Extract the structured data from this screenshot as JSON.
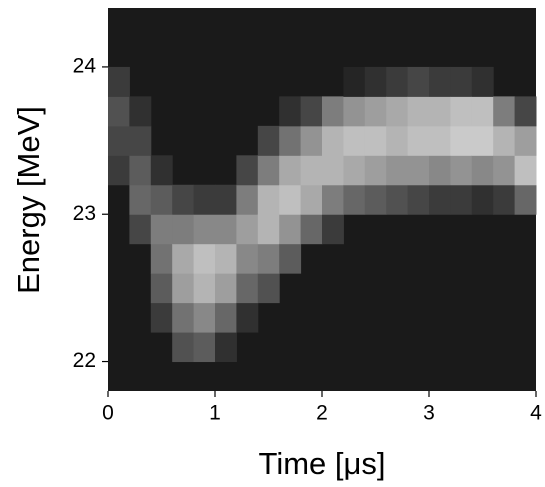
{
  "chart_data": {
    "type": "heatmap",
    "xlabel": "Time [μs]",
    "ylabel": "Energy [MeV]",
    "xlim": [
      0,
      4
    ],
    "ylim": [
      21.8,
      24.4
    ],
    "xticks": [
      0,
      1,
      2,
      3,
      4
    ],
    "yticks": [
      22,
      23,
      24
    ],
    "background": "#1a1a1a",
    "x_edges": [
      0,
      0.2,
      0.4,
      0.6,
      0.8,
      1,
      1.2,
      1.4,
      1.6,
      1.8,
      2,
      2.2,
      2.4,
      2.6,
      2.8,
      3,
      3.2,
      3.4,
      3.6,
      3.8,
      4
    ],
    "y_edges": [
      21.8,
      22,
      22.2,
      22.4,
      22.6,
      22.8,
      23,
      23.2,
      23.4,
      23.6,
      23.8,
      24,
      24.2,
      24.4
    ],
    "z": [
      [
        0,
        0,
        0,
        0,
        0,
        0,
        0,
        0.15,
        0.2,
        0.25,
        0.15,
        0,
        0
      ],
      [
        0,
        0,
        0,
        0,
        0,
        0.2,
        0.35,
        0.3,
        0.2,
        0.1,
        0,
        0,
        0
      ],
      [
        0,
        0,
        0.15,
        0.3,
        0.4,
        0.45,
        0.3,
        0.1,
        0,
        0,
        0,
        0,
        0
      ],
      [
        0,
        0.25,
        0.4,
        0.6,
        0.65,
        0.45,
        0.2,
        0,
        0,
        0,
        0,
        0,
        0
      ],
      [
        0,
        0.3,
        0.5,
        0.7,
        0.75,
        0.5,
        0.15,
        0,
        0,
        0,
        0,
        0,
        0
      ],
      [
        0,
        0.1,
        0.35,
        0.6,
        0.7,
        0.5,
        0.15,
        0,
        0,
        0,
        0,
        0,
        0
      ],
      [
        0,
        0,
        0.1,
        0.35,
        0.5,
        0.6,
        0.45,
        0.2,
        0,
        0,
        0,
        0,
        0
      ],
      [
        0,
        0,
        0,
        0.25,
        0.45,
        0.7,
        0.7,
        0.45,
        0.2,
        0,
        0,
        0,
        0
      ],
      [
        0,
        0,
        0,
        0,
        0.3,
        0.55,
        0.75,
        0.65,
        0.4,
        0.1,
        0,
        0,
        0
      ],
      [
        0,
        0,
        0,
        0,
        0,
        0.35,
        0.65,
        0.7,
        0.55,
        0.2,
        0,
        0,
        0
      ],
      [
        0,
        0,
        0,
        0,
        0,
        0.15,
        0.45,
        0.7,
        0.7,
        0.45,
        0,
        0,
        0
      ],
      [
        0,
        0,
        0,
        0,
        0,
        0,
        0.35,
        0.65,
        0.75,
        0.55,
        0.05,
        0,
        0
      ],
      [
        0,
        0,
        0,
        0,
        0,
        0,
        0.3,
        0.6,
        0.75,
        0.6,
        0.1,
        0,
        0
      ],
      [
        0,
        0,
        0,
        0,
        0,
        0,
        0.25,
        0.55,
        0.7,
        0.65,
        0.15,
        0,
        0
      ],
      [
        0,
        0,
        0,
        0,
        0,
        0,
        0.2,
        0.55,
        0.75,
        0.7,
        0.2,
        0,
        0
      ],
      [
        0,
        0,
        0,
        0,
        0,
        0,
        0.15,
        0.5,
        0.75,
        0.7,
        0.15,
        0,
        0
      ],
      [
        0,
        0,
        0,
        0,
        0,
        0,
        0.15,
        0.55,
        0.8,
        0.75,
        0.15,
        0,
        0
      ],
      [
        0,
        0,
        0,
        0,
        0,
        0,
        0.1,
        0.5,
        0.8,
        0.75,
        0.1,
        0,
        0
      ],
      [
        0,
        0,
        0,
        0,
        0,
        0,
        0.15,
        0.55,
        0.7,
        0.45,
        0,
        0,
        0
      ],
      [
        0,
        0,
        0,
        0,
        0,
        0,
        0.35,
        0.75,
        0.6,
        0.2,
        0,
        0,
        0
      ]
    ]
  }
}
